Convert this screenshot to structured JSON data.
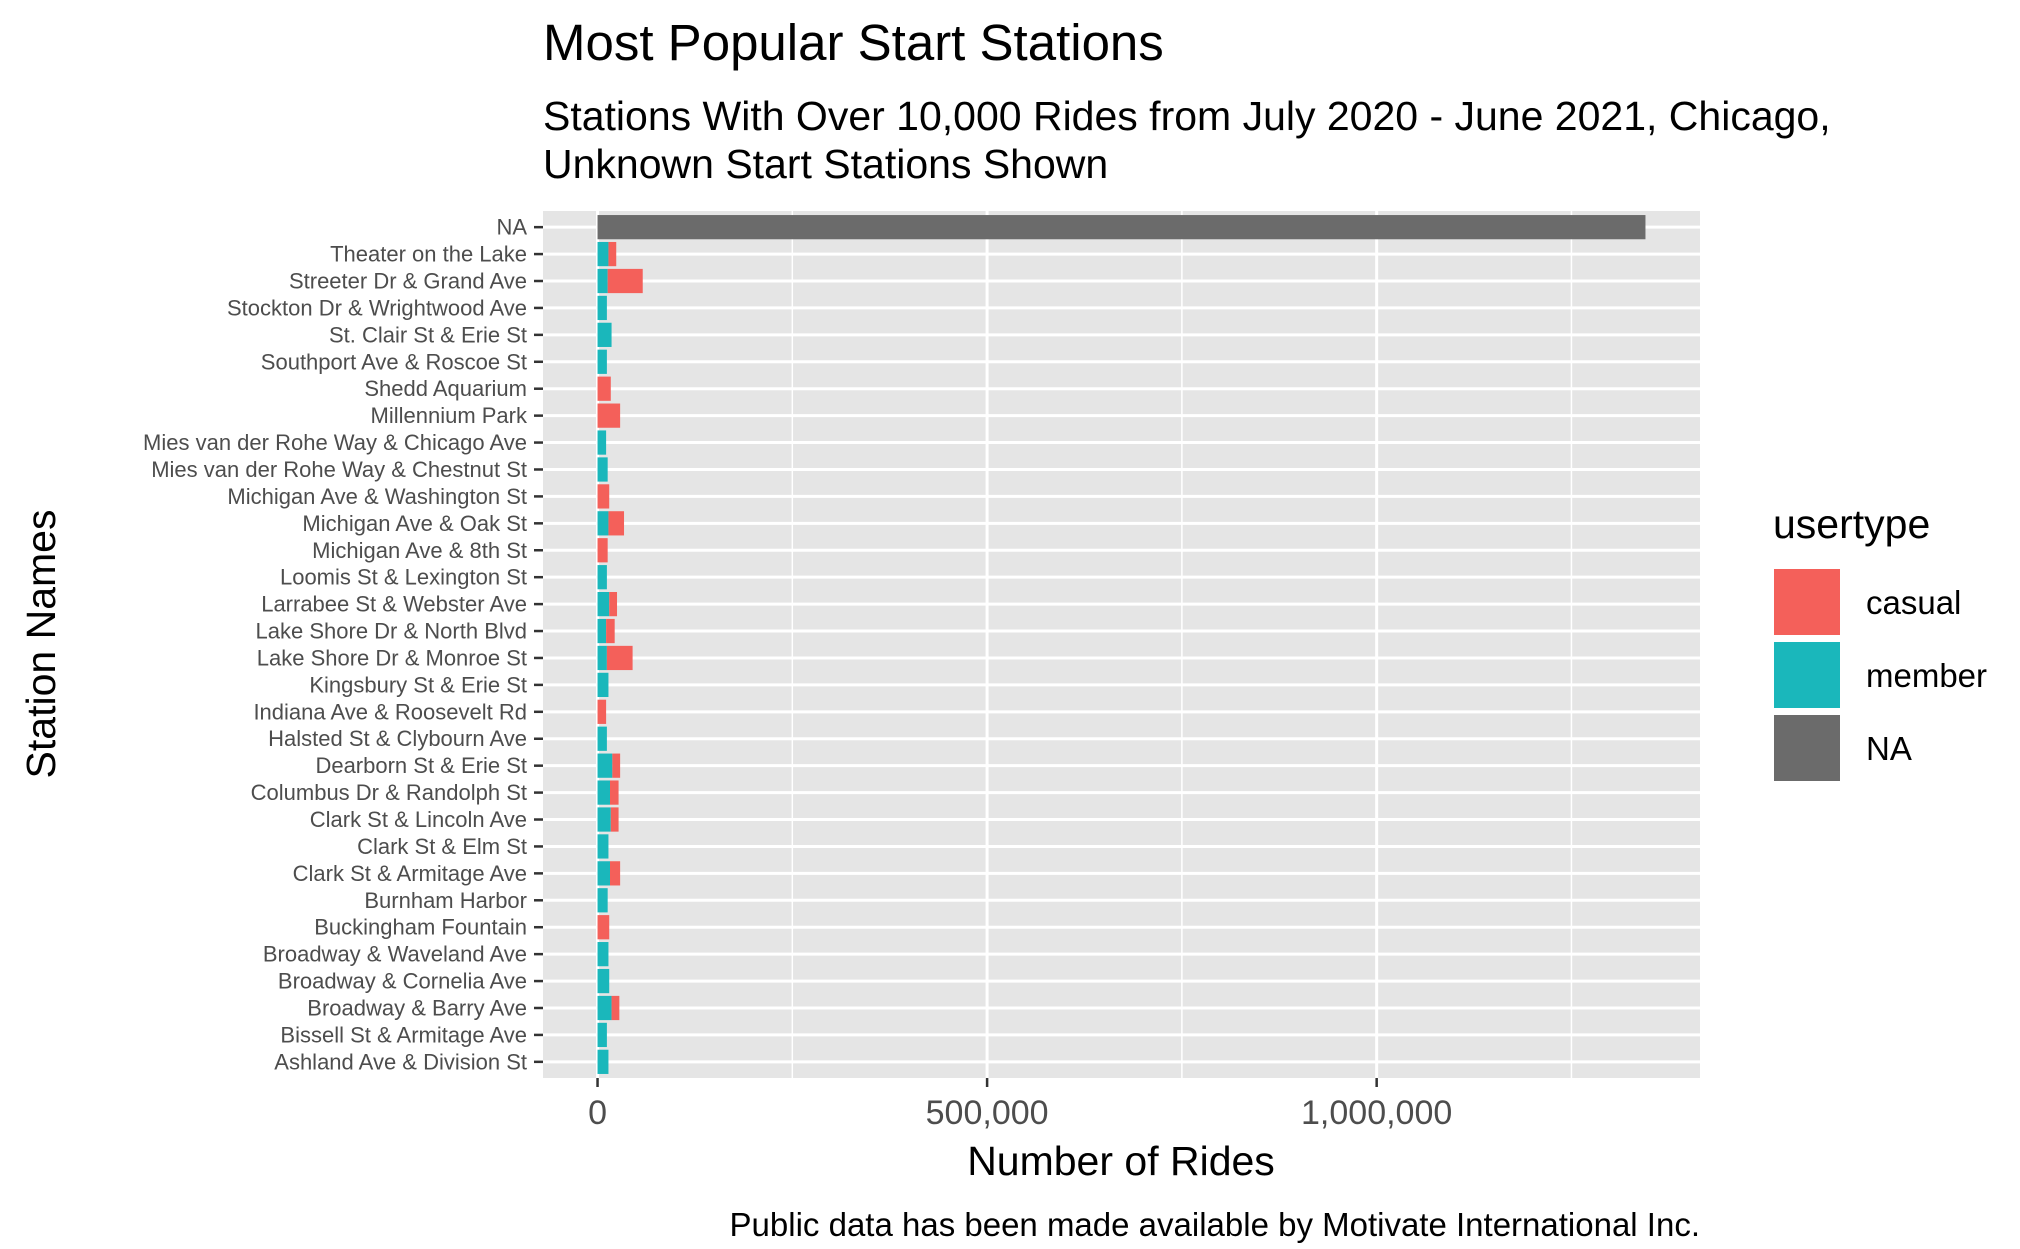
{
  "chart_data": {
    "type": "bar",
    "orientation": "horizontal",
    "stacked": true,
    "title": "Most Popular Start Stations",
    "subtitle": "Stations With Over 10,000 Rides from July 2020 - June 2021, Chicago,\nUnknown Start Stations Shown",
    "xlabel": "Number of Rides",
    "ylabel": "Station Names",
    "caption": "Public data has been made available by Motivate International Inc.",
    "xlim": [
      -70000,
      1415000
    ],
    "x_ticks": [
      0,
      500000,
      1000000
    ],
    "x_tick_labels": [
      "0",
      "500,000",
      "1,000,000"
    ],
    "grid": true,
    "legend": {
      "title": "usertype",
      "position": "right"
    },
    "categories": [
      "NA",
      "Theater on the Lake",
      "Streeter Dr & Grand Ave",
      "Stockton Dr & Wrightwood Ave",
      "St. Clair St & Erie St",
      "Southport Ave & Roscoe St",
      "Shedd Aquarium",
      "Millennium Park",
      "Mies van der Rohe Way & Chicago Ave",
      "Mies van der Rohe Way & Chestnut St",
      "Michigan Ave & Washington St",
      "Michigan Ave & Oak St",
      "Michigan Ave & 8th St",
      "Loomis St & Lexington St",
      "Larrabee St & Webster Ave",
      "Lake Shore Dr & North Blvd",
      "Lake Shore Dr & Monroe St",
      "Kingsbury St & Erie St",
      "Indiana Ave & Roosevelt Rd",
      "Halsted St & Clybourn Ave",
      "Dearborn St & Erie St",
      "Columbus Dr & Randolph St",
      "Clark St & Lincoln Ave",
      "Clark St & Elm St",
      "Clark St & Armitage Ave",
      "Burnham Harbor",
      "Buckingham Fountain",
      "Broadway & Waveland Ave",
      "Broadway & Cornelia Ave",
      "Broadway & Barry Ave",
      "Bissell St & Armitage Ave",
      "Ashland Ave & Division St"
    ],
    "series": [
      {
        "name": "member",
        "color": "#1ab7bb",
        "values": [
          0,
          14000,
          13000,
          12000,
          18000,
          12000,
          0,
          0,
          11000,
          13000,
          0,
          14000,
          0,
          12000,
          15000,
          11000,
          12000,
          14000,
          0,
          12000,
          19000,
          16000,
          17000,
          14000,
          16000,
          13000,
          0,
          14000,
          15000,
          18000,
          12000,
          14000
        ]
      },
      {
        "name": "casual",
        "color": "#f4605a",
        "values": [
          0,
          10000,
          45000,
          0,
          0,
          0,
          17000,
          29000,
          0,
          0,
          15000,
          20000,
          13000,
          0,
          10000,
          11000,
          33000,
          0,
          11000,
          0,
          10000,
          11000,
          10000,
          0,
          13000,
          0,
          15000,
          0,
          0,
          10000,
          0,
          0
        ]
      },
      {
        "name": "NA",
        "color": "#6b6b6b",
        "values": [
          1345000,
          0,
          0,
          0,
          0,
          0,
          0,
          0,
          0,
          0,
          0,
          0,
          0,
          0,
          0,
          0,
          0,
          0,
          0,
          0,
          0,
          0,
          0,
          0,
          0,
          0,
          0,
          0,
          0,
          0,
          0,
          0
        ]
      }
    ],
    "legend_order": [
      "casual",
      "member",
      "NA"
    ],
    "panel_color": "#e5e5e5",
    "grid_color": "#ffffff"
  }
}
